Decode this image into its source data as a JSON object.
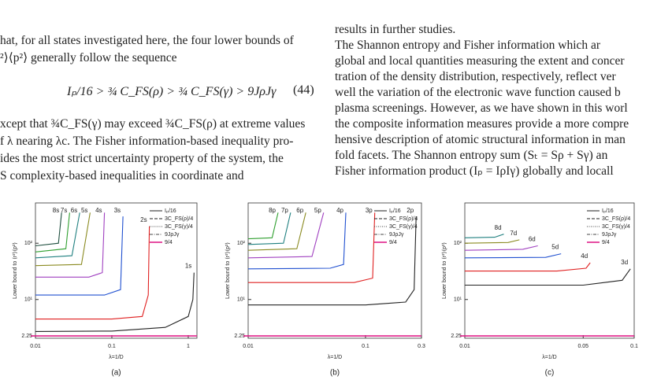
{
  "text": {
    "left": [
      "hat, for all states investigated here, the four lower bounds of",
      "²⟩⟨p²⟩ generally follow the sequence"
    ],
    "equation": "Iₚ/16 > ¾ C_FS(ρ) > ¾ C_FS(γ) > 9JρJγ",
    "equation_number": "(44)",
    "left_after": [
      "xcept that ¾C_FS(γ) may exceed ¾C_FS(ρ) at extreme values",
      "f λ nearing λc. The Fisher information-based inequality pro-",
      "ides the most strict uncertainty property of the system, the",
      "S complexity-based inequalities in coordinate and"
    ],
    "right": [
      "results in further studies.",
      "     The Shannon entropy and Fisher information which ar",
      "global and local quantities measuring the extent and concer",
      "tration of the density distribution, respectively, reflect ver",
      "well the variation of the electronic wave function caused b",
      "plasma screenings. However, as we have shown in this worl",
      "the composite information measures provide a more compre",
      "hensive description of atomic structural information in man",
      "fold facets. The Shannon entropy sum (Sₜ = Sρ + Sγ) an",
      "Fisher information product (Iₚ = IρIγ) globally and locall"
    ]
  },
  "chart_data": [
    {
      "type": "line",
      "panel": "(a)",
      "xlabel": "λ=1/D",
      "ylabel": "Lower bound to ⟨r²⟩⟨p²⟩",
      "xscale": "log",
      "yscale": "log",
      "xlim": [
        0.01,
        1.3
      ],
      "ylim": [
        2.05,
        520
      ],
      "xticks": [
        0.01,
        0.1,
        1
      ],
      "yticks": [
        2.25,
        {
          "value": 10,
          "label": "10¹"
        },
        {
          "value": 100,
          "label": "10²"
        }
      ],
      "legend_corner": "upper right",
      "legend": [
        {
          "name": "Iₚ/16",
          "color": "#222222",
          "style": "solid"
        },
        {
          "name": "3C_FS(ρ)/4",
          "color": "#222222",
          "style": "dashed"
        },
        {
          "name": "3C_FS(γ)/4",
          "color": "#444444",
          "style": "dotted"
        },
        {
          "name": "9JρJγ",
          "color": "#444444",
          "style": "dashdot"
        },
        {
          "name": "9/4",
          "color": "#e0208a",
          "style": "solid",
          "value": 2.25
        }
      ],
      "series": [
        {
          "name": "1s",
          "color": "#222222",
          "x": [
            0.01,
            0.1,
            0.5,
            1.0,
            1.15,
            1.19
          ],
          "values": [
            2.7,
            2.75,
            3.2,
            5,
            10,
            30
          ]
        },
        {
          "name": "2s",
          "color": "#e02020",
          "x": [
            0.01,
            0.1,
            0.25,
            0.3,
            0.31
          ],
          "values": [
            4.5,
            4.5,
            5,
            12,
            200
          ]
        },
        {
          "name": "3s",
          "color": "#2050d0",
          "x": [
            0.01,
            0.08,
            0.13,
            0.14
          ],
          "values": [
            12,
            12,
            15,
            300
          ]
        },
        {
          "name": "4s",
          "color": "#a040c0",
          "x": [
            0.01,
            0.05,
            0.075,
            0.08
          ],
          "values": [
            25,
            25,
            30,
            350
          ]
        },
        {
          "name": "5s",
          "color": "#8a8a20",
          "x": [
            0.01,
            0.04,
            0.052
          ],
          "values": [
            40,
            42,
            350
          ]
        },
        {
          "name": "6s",
          "color": "#208080",
          "x": [
            0.01,
            0.03,
            0.038
          ],
          "values": [
            55,
            60,
            350
          ]
        },
        {
          "name": "7s",
          "color": "#30a030",
          "x": [
            0.01,
            0.025,
            0.028
          ],
          "values": [
            70,
            80,
            350
          ]
        },
        {
          "name": "8s",
          "color": "#205040",
          "x": [
            0.01,
            0.02,
            0.022
          ],
          "values": [
            90,
            100,
            350
          ]
        }
      ]
    },
    {
      "type": "line",
      "panel": "(b)",
      "xlabel": "λ=1/D",
      "ylabel": "Lower bound to ⟨r²⟩⟨p²⟩",
      "xscale": "log",
      "yscale": "log",
      "xlim": [
        0.01,
        0.3
      ],
      "ylim": [
        2.05,
        520
      ],
      "xticks": [
        0.01,
        0.1,
        0.3
      ],
      "yticks": [
        2.25,
        {
          "value": 10,
          "label": "10¹"
        },
        {
          "value": 100,
          "label": "10²"
        }
      ],
      "legend_corner": "upper right",
      "legend": [
        {
          "name": "Iₚ/16",
          "color": "#222222",
          "style": "solid"
        },
        {
          "name": "3C_FS(ρ)/4",
          "color": "#222222",
          "style": "dashed"
        },
        {
          "name": "3C_FS(γ)/4",
          "color": "#444444",
          "style": "dotted"
        },
        {
          "name": "9JρJγ",
          "color": "#444444",
          "style": "dashdot"
        },
        {
          "name": "9/4",
          "color": "#e0208a",
          "style": "solid",
          "value": 2.25
        }
      ],
      "series": [
        {
          "name": "2p",
          "color": "#222222",
          "x": [
            0.01,
            0.1,
            0.22,
            0.26,
            0.27
          ],
          "values": [
            8,
            8,
            9,
            15,
            300
          ]
        },
        {
          "name": "3p",
          "color": "#e02020",
          "x": [
            0.01,
            0.08,
            0.115,
            0.12
          ],
          "values": [
            20,
            20,
            24,
            350
          ]
        },
        {
          "name": "4p",
          "color": "#2050d0",
          "x": [
            0.01,
            0.05,
            0.065,
            0.068
          ],
          "values": [
            35,
            36,
            42,
            350
          ]
        },
        {
          "name": "5p",
          "color": "#a040c0",
          "x": [
            0.01,
            0.035,
            0.044
          ],
          "values": [
            55,
            58,
            350
          ]
        },
        {
          "name": "6p",
          "color": "#8a8a20",
          "x": [
            0.01,
            0.026,
            0.031
          ],
          "values": [
            75,
            80,
            350
          ]
        },
        {
          "name": "7p",
          "color": "#208080",
          "x": [
            0.01,
            0.02,
            0.023
          ],
          "values": [
            95,
            100,
            350
          ]
        },
        {
          "name": "8p",
          "color": "#30a030",
          "x": [
            0.01,
            0.016,
            0.018
          ],
          "values": [
            120,
            125,
            350
          ]
        }
      ]
    },
    {
      "type": "line",
      "panel": "(c)",
      "xlabel": "λ=1/D",
      "ylabel": "Lower bound to ⟨r²⟩⟨p²⟩",
      "xscale": "log",
      "yscale": "log",
      "xlim": [
        0.01,
        0.1
      ],
      "ylim": [
        2.05,
        520
      ],
      "xticks": [
        0.01,
        0.05,
        0.1
      ],
      "yticks": [
        2.25,
        {
          "value": 10,
          "label": "10¹"
        },
        {
          "value": 100,
          "label": "10²"
        }
      ],
      "legend_corner": "upper right",
      "legend": [
        {
          "name": "Iₚ/16",
          "color": "#222222",
          "style": "solid"
        },
        {
          "name": "3C_FS(ρ)/4",
          "color": "#222222",
          "style": "dashed"
        },
        {
          "name": "3C_FS(γ)/4",
          "color": "#444444",
          "style": "dotted"
        },
        {
          "name": "9JρJγ",
          "color": "#444444",
          "style": "dashdot"
        },
        {
          "name": "9/4",
          "color": "#e0208a",
          "style": "solid",
          "value": 2.25
        }
      ],
      "series": [
        {
          "name": "3d",
          "color": "#222222",
          "x": [
            0.01,
            0.05,
            0.085,
            0.095
          ],
          "values": [
            18,
            18,
            22,
            35
          ]
        },
        {
          "name": "4d",
          "color": "#e02020",
          "x": [
            0.01,
            0.035,
            0.052,
            0.055
          ],
          "values": [
            32,
            32,
            36,
            45
          ]
        },
        {
          "name": "5d",
          "color": "#2050d0",
          "x": [
            0.01,
            0.03,
            0.037
          ],
          "values": [
            55,
            56,
            65
          ]
        },
        {
          "name": "6d",
          "color": "#a040c0",
          "x": [
            0.01,
            0.022,
            0.027
          ],
          "values": [
            75,
            78,
            90
          ]
        },
        {
          "name": "7d",
          "color": "#8a8a20",
          "x": [
            0.01,
            0.018,
            0.021
          ],
          "values": [
            100,
            103,
            115
          ]
        },
        {
          "name": "8d",
          "color": "#208080",
          "x": [
            0.01,
            0.015,
            0.017
          ],
          "values": [
            125,
            128,
            145
          ]
        }
      ]
    }
  ]
}
